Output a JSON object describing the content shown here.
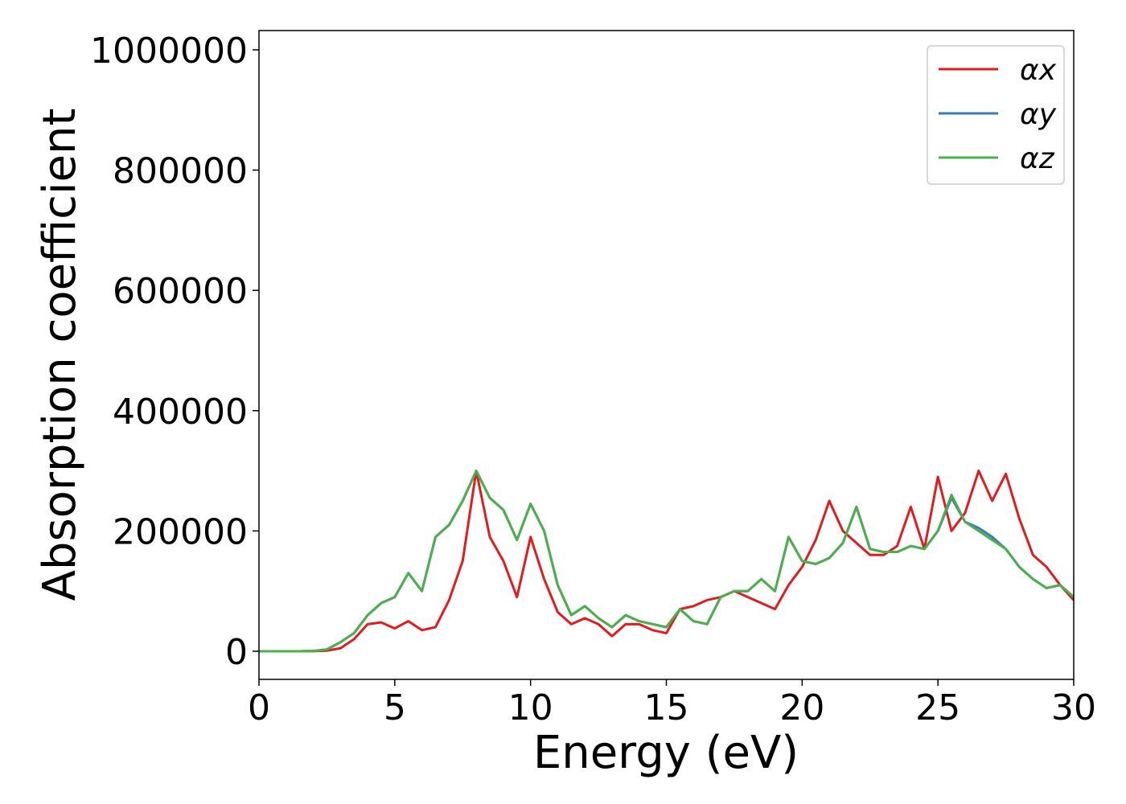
{
  "chart_data": {
    "type": "line",
    "x_label": "Energy (eV)",
    "y_label": "Absorption coefficient",
    "x": [
      0,
      0.5,
      1,
      1.5,
      2,
      2.5,
      3,
      3.5,
      4,
      4.5,
      5,
      5.5,
      6,
      6.5,
      7,
      7.5,
      8,
      8.5,
      9,
      9.5,
      10,
      10.5,
      11,
      11.5,
      12,
      12.5,
      13,
      13.5,
      14,
      14.5,
      15,
      15.5,
      16,
      16.5,
      17,
      17.5,
      18,
      18.5,
      19,
      19.5,
      20,
      20.5,
      21,
      21.5,
      22,
      22.5,
      23,
      23.5,
      24,
      24.5,
      25,
      25.5,
      26,
      26.5,
      27,
      27.5,
      28,
      28.5,
      29,
      29.5,
      30
    ],
    "series": [
      {
        "name": "αx",
        "color": "#e41a1c",
        "values": [
          0,
          0,
          0,
          0,
          200,
          1000,
          5000,
          20000,
          45000,
          48000,
          38000,
          50000,
          35000,
          40000,
          85000,
          150000,
          300000,
          190000,
          150000,
          90000,
          190000,
          120000,
          65000,
          45000,
          55000,
          45000,
          25000,
          45000,
          45000,
          35000,
          30000,
          70000,
          75000,
          85000,
          90000,
          100000,
          90000,
          80000,
          70000,
          110000,
          140000,
          185000,
          250000,
          200000,
          180000,
          160000,
          160000,
          175000,
          240000,
          170000,
          290000,
          200000,
          230000,
          300000,
          250000,
          295000,
          220000,
          160000,
          140000,
          110000,
          85000
        ]
      },
      {
        "name": "αy",
        "color": "#377eb8",
        "values": [
          0,
          0,
          0,
          0,
          500,
          3000,
          15000,
          30000,
          60000,
          80000,
          90000,
          130000,
          100000,
          190000,
          210000,
          250000,
          300000,
          255000,
          235000,
          185000,
          245000,
          200000,
          110000,
          60000,
          75000,
          55000,
          40000,
          60000,
          50000,
          45000,
          40000,
          70000,
          50000,
          45000,
          90000,
          100000,
          100000,
          120000,
          100000,
          190000,
          150000,
          145000,
          155000,
          180000,
          240000,
          170000,
          165000,
          165000,
          175000,
          170000,
          200000,
          255000,
          215000,
          205000,
          190000,
          170000,
          140000,
          120000,
          105000,
          110000,
          90000
        ]
      },
      {
        "name": "αz",
        "color": "#4daf4a",
        "values": [
          0,
          0,
          0,
          0,
          500,
          3000,
          15000,
          30000,
          60000,
          80000,
          90000,
          130000,
          100000,
          190000,
          210000,
          250000,
          300000,
          255000,
          235000,
          185000,
          245000,
          200000,
          110000,
          60000,
          75000,
          55000,
          40000,
          60000,
          50000,
          45000,
          40000,
          70000,
          50000,
          45000,
          90000,
          100000,
          100000,
          120000,
          100000,
          190000,
          150000,
          145000,
          155000,
          180000,
          240000,
          170000,
          165000,
          165000,
          175000,
          170000,
          200000,
          260000,
          215000,
          200000,
          185000,
          170000,
          140000,
          120000,
          105000,
          110000,
          90000
        ]
      }
    ],
    "xlim": [
      0,
      30
    ],
    "xticks": [
      0,
      5,
      10,
      15,
      20,
      25,
      30
    ],
    "ylim": [
      -46800,
      1032000
    ],
    "yticks": [
      0,
      200000,
      400000,
      600000,
      800000,
      1000000
    ],
    "grid": false,
    "legend": "upper right"
  }
}
